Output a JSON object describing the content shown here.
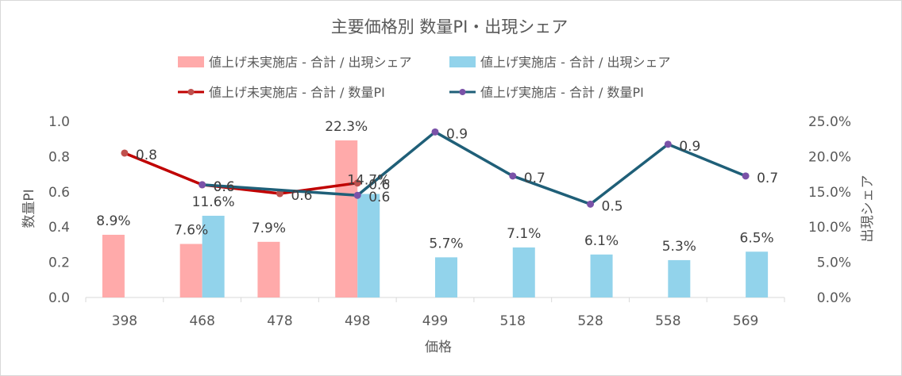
{
  "chart_data": {
    "type": "bar+line",
    "title": "主要価格別 数量PI・出現シェア",
    "xlabel": "価格",
    "ylabel_left": "数量PI",
    "ylabel_right": "出現シェア",
    "categories": [
      "398",
      "468",
      "478",
      "498",
      "499",
      "518",
      "528",
      "558",
      "569"
    ],
    "ylim_left": [
      0,
      1.0
    ],
    "ylim_right": [
      0,
      0.25
    ],
    "yticks_left": [
      "0.0",
      "0.2",
      "0.4",
      "0.6",
      "0.8",
      "1.0"
    ],
    "yticks_right": [
      "0.0%",
      "5.0%",
      "10.0%",
      "15.0%",
      "20.0%",
      "25.0%"
    ],
    "grid": false,
    "legend_position": "top",
    "bar_series": [
      {
        "name": "値上げ未実施店 - 合計 / 出現シェア",
        "color": "#ffaaaa",
        "values": [
          0.089,
          0.076,
          0.079,
          0.223,
          null,
          null,
          null,
          null,
          null
        ],
        "labels": [
          "8.9%",
          "7.6%",
          "7.9%",
          "22.3%",
          "",
          "",
          "",
          "",
          ""
        ]
      },
      {
        "name": "値上げ実施店 - 合計 / 出現シェア",
        "color": "#92d3eb",
        "values": [
          null,
          0.116,
          null,
          0.147,
          0.057,
          0.071,
          0.061,
          0.053,
          0.065
        ],
        "labels": [
          "",
          "11.6%",
          "",
          "14.7%",
          "5.7%",
          "7.1%",
          "6.1%",
          "5.3%",
          "6.5%"
        ]
      }
    ],
    "line_series": [
      {
        "name": "値上げ未実施店 - 合計 / 数量PI",
        "color": "#c00000",
        "marker_color": "#c0504d",
        "values": [
          0.82,
          0.64,
          0.59,
          0.65,
          null,
          null,
          null,
          null,
          null
        ],
        "labels": [
          "0.8",
          "0.6",
          "0.6",
          "0.6",
          "",
          "",
          "",
          "",
          ""
        ]
      },
      {
        "name": "値上げ実施店 - 合計 / 数量PI",
        "color": "#1f5f78",
        "marker_color": "#7a52a8",
        "values": [
          null,
          0.64,
          null,
          0.58,
          0.94,
          0.69,
          0.53,
          0.87,
          0.69
        ],
        "labels": [
          "",
          "0.6",
          "",
          "0.6",
          "0.9",
          "0.7",
          "0.5",
          "0.9",
          "0.7"
        ]
      }
    ]
  }
}
